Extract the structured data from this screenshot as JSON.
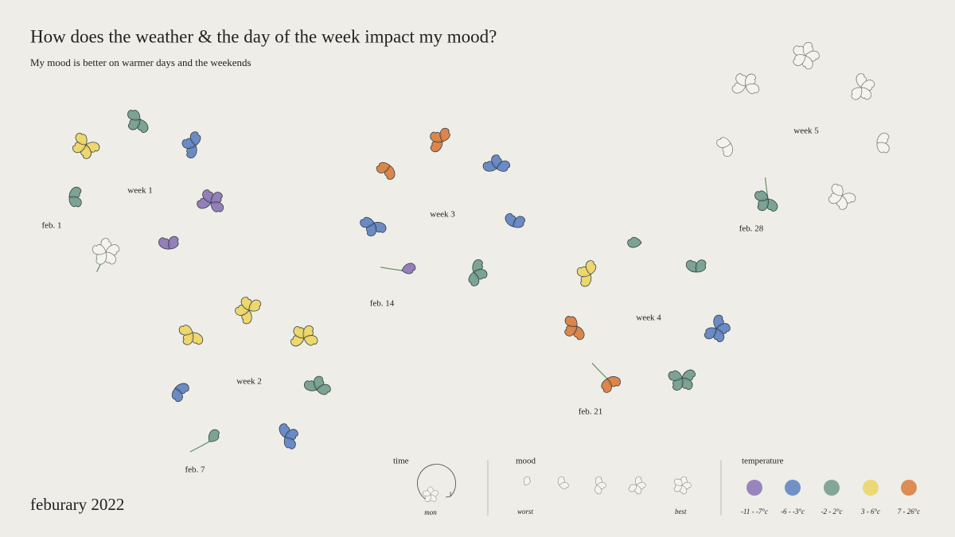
{
  "header": {
    "title": "How does the weather & the day of the week impact my mood?",
    "subtitle": "My mood is better on warmer days and the weekends"
  },
  "footer": "feburary 2022",
  "weeks": [
    {
      "label": "week 1",
      "date_label": "feb. 1",
      "days": [
        {
          "mood": 5,
          "temperature": null
        },
        {
          "mood": 2,
          "temperature": 2
        },
        {
          "mood": 4,
          "temperature": 3
        },
        {
          "mood": 3,
          "temperature": 2
        },
        {
          "mood": 3,
          "temperature": 1
        },
        {
          "mood": 4,
          "temperature": 0
        },
        {
          "mood": 2,
          "temperature": 0
        }
      ]
    },
    {
      "label": "week 2",
      "date_label": "feb. 7",
      "days": [
        {
          "mood": 1,
          "temperature": 2
        },
        {
          "mood": 2,
          "temperature": 1
        },
        {
          "mood": 3,
          "temperature": 3
        },
        {
          "mood": 4,
          "temperature": 3
        },
        {
          "mood": 4,
          "temperature": 3
        },
        {
          "mood": 3,
          "temperature": 2
        },
        {
          "mood": 3,
          "temperature": 1
        }
      ]
    },
    {
      "label": "week 3",
      "date_label": "feb. 14",
      "days": [
        {
          "mood": 1,
          "temperature": 0
        },
        {
          "mood": 3,
          "temperature": 1
        },
        {
          "mood": 2,
          "temperature": 4
        },
        {
          "mood": 3,
          "temperature": 4
        },
        {
          "mood": 3,
          "temperature": 1
        },
        {
          "mood": 2,
          "temperature": 1
        },
        {
          "mood": 3,
          "temperature": 2
        }
      ]
    },
    {
      "label": "week 4",
      "date_label": "feb. 21",
      "days": [
        {
          "mood": 2,
          "temperature": 4
        },
        {
          "mood": 3,
          "temperature": 4
        },
        {
          "mood": 3,
          "temperature": 3
        },
        {
          "mood": 1,
          "temperature": 2
        },
        {
          "mood": 2,
          "temperature": 2
        },
        {
          "mood": 4,
          "temperature": 1
        },
        {
          "mood": 4,
          "temperature": 2
        }
      ]
    },
    {
      "label": "week 5",
      "date_label": "feb. 28",
      "days": [
        {
          "mood": 3,
          "temperature": 2
        },
        {
          "mood": 2,
          "temperature": null
        },
        {
          "mood": 4,
          "temperature": null
        },
        {
          "mood": 5,
          "temperature": null
        },
        {
          "mood": 4,
          "temperature": null
        },
        {
          "mood": 2,
          "temperature": null
        },
        {
          "mood": 4,
          "temperature": null
        }
      ]
    }
  ],
  "legend": {
    "time": {
      "title": "time",
      "label": "mon"
    },
    "mood": {
      "title": "mood",
      "worst": "worst",
      "best": "best",
      "levels": [
        1,
        2,
        3,
        4,
        5
      ]
    },
    "temperature": {
      "title": "temperature",
      "bins": [
        {
          "label": "-11 - -7°c",
          "color": "#8a72b5"
        },
        {
          "label": "-6 - -3°c",
          "color": "#5b7fc0"
        },
        {
          "label": "-2 - 2°c",
          "color": "#6f9a8a"
        },
        {
          "label": "3 - 6°c",
          "color": "#ecd462"
        },
        {
          "label": "7 - 26°c",
          "color": "#d97a3a"
        }
      ]
    }
  }
}
